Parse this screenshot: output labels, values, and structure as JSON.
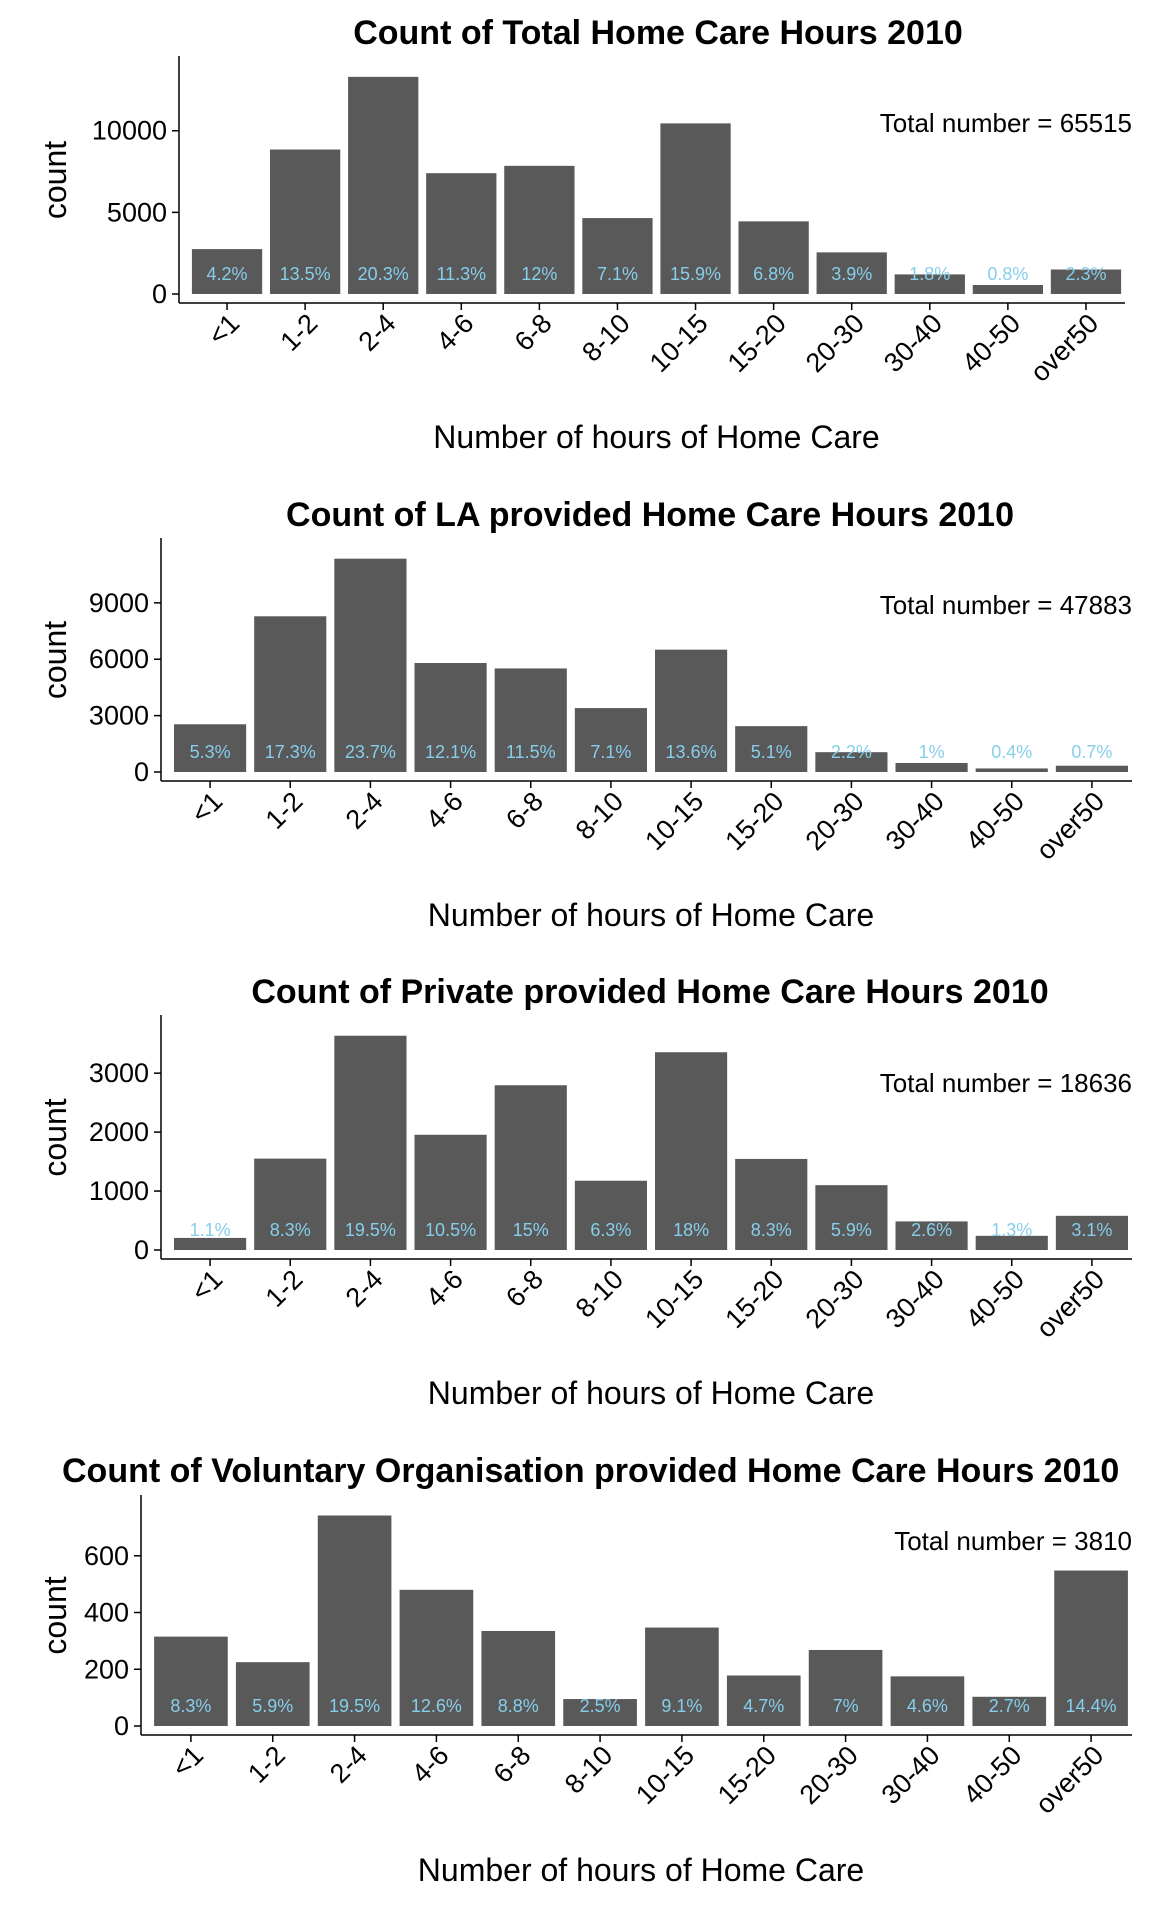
{
  "colors": {
    "bar": "#595959",
    "pct_label": "#87CEEB",
    "axis": "#000000"
  },
  "chart_data": [
    {
      "type": "bar",
      "title": "Count of Total Home Care Hours 2010",
      "xlabel": "Number of hours of Home Care",
      "ylabel": "count",
      "annotation": "Total number = 65515",
      "categories": [
        "<1",
        "1-2",
        "2-4",
        "4-6",
        "6-8",
        "8-10",
        "10-15",
        "15-20",
        "20-30",
        "30-40",
        "40-50",
        "over50"
      ],
      "values": [
        2750,
        8850,
        13300,
        7400,
        7850,
        4650,
        10450,
        4450,
        2550,
        1200,
        550,
        1500
      ],
      "value_labels": [
        "4.2%",
        "13.5%",
        "20.3%",
        "11.3%",
        "12%",
        "7.1%",
        "15.9%",
        "6.8%",
        "3.9%",
        "1.8%",
        "0.8%",
        "2.3%"
      ],
      "yticks": [
        0,
        5000,
        10000
      ],
      "ylim": [
        0,
        13965
      ],
      "grid": false
    },
    {
      "type": "bar",
      "title": "Count of LA provided Home Care Hours 2010",
      "xlabel": "Number of hours of Home Care",
      "ylabel": "count",
      "annotation": "Total number = 47883",
      "categories": [
        "<1",
        "1-2",
        "2-4",
        "4-6",
        "6-8",
        "8-10",
        "10-15",
        "15-20",
        "20-30",
        "30-40",
        "40-50",
        "over50"
      ],
      "values": [
        2540,
        8285,
        11350,
        5800,
        5510,
        3400,
        6510,
        2440,
        1055,
        480,
        190,
        335
      ],
      "value_labels": [
        "5.3%",
        "17.3%",
        "23.7%",
        "12.1%",
        "11.5%",
        "7.1%",
        "13.6%",
        "5.1%",
        "2.2%",
        "1%",
        "0.4%",
        "0.7%"
      ],
      "yticks": [
        0,
        3000,
        6000,
        9000
      ],
      "ylim": [
        0,
        11918
      ],
      "grid": false
    },
    {
      "type": "bar",
      "title": "Count of Private provided Home Care Hours 2010",
      "xlabel": "Number of hours of Home Care",
      "ylabel": "count",
      "annotation": "Total number = 18636",
      "categories": [
        "<1",
        "1-2",
        "2-4",
        "4-6",
        "6-8",
        "8-10",
        "10-15",
        "15-20",
        "20-30",
        "30-40",
        "40-50",
        "over50"
      ],
      "values": [
        205,
        1550,
        3635,
        1955,
        2795,
        1175,
        3355,
        1545,
        1100,
        485,
        240,
        580
      ],
      "value_labels": [
        "1.1%",
        "8.3%",
        "19.5%",
        "10.5%",
        "15%",
        "6.3%",
        "18%",
        "8.3%",
        "5.9%",
        "2.6%",
        "1.3%",
        "3.1%"
      ],
      "yticks": [
        0,
        1000,
        2000,
        3000
      ],
      "ylim": [
        0,
        3817
      ],
      "grid": false
    },
    {
      "type": "bar",
      "title": "Count of Voluntary Organisation provided Home Care Hours 2010",
      "xlabel": "Number of hours of Home Care",
      "ylabel": "count",
      "annotation": "Total number = 3810",
      "categories": [
        "<1",
        "1-2",
        "2-4",
        "4-6",
        "6-8",
        "8-10",
        "10-15",
        "15-20",
        "20-30",
        "30-40",
        "40-50",
        "over50"
      ],
      "values": [
        315,
        225,
        742,
        480,
        335,
        95,
        347,
        178,
        268,
        175,
        103,
        548
      ],
      "value_labels": [
        "8.3%",
        "5.9%",
        "19.5%",
        "12.6%",
        "8.8%",
        "2.5%",
        "9.1%",
        "4.7%",
        "7%",
        "4.6%",
        "2.7%",
        "14.4%"
      ],
      "yticks": [
        0,
        200,
        400,
        600
      ],
      "ylim": [
        0,
        779
      ],
      "grid": false
    }
  ]
}
